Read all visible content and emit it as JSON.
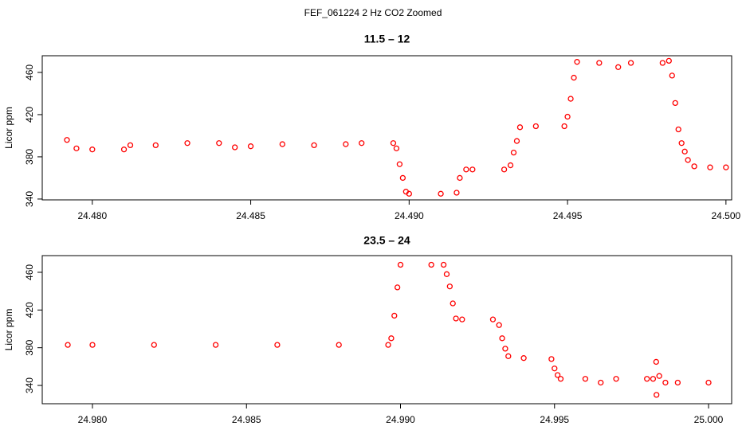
{
  "title": "FEF_061224  2 Hz CO2 Zoomed",
  "chart_data": [
    {
      "type": "scatter",
      "title": "11.5 – 12",
      "y_label": "Licor ppm",
      "color": "#ff0000",
      "xlim": [
        24.47842,
        24.50018
      ],
      "ylim": [
        339.2,
        475.8
      ],
      "xticks": [
        {
          "value": 24.48,
          "label": "24.480"
        },
        {
          "value": 24.485,
          "label": "24.485"
        },
        {
          "value": 24.49,
          "label": "24.490"
        },
        {
          "value": 24.495,
          "label": "24.495"
        },
        {
          "value": 24.5,
          "label": "24.500"
        }
      ],
      "yticks": [
        340,
        380,
        420,
        460
      ],
      "series": [
        {
          "name": "Licor ppm",
          "color": "#ff0000",
          "x": [
            24.4792,
            24.4795,
            24.48,
            24.481,
            24.4812,
            24.482,
            24.483,
            24.484,
            24.4845,
            24.485,
            24.486,
            24.487,
            24.488,
            24.4885,
            24.4895,
            24.4896,
            24.4897,
            24.4898,
            24.4899,
            24.49,
            24.491,
            24.4915,
            24.4916,
            24.4918,
            24.492,
            24.493,
            24.4932,
            24.4933,
            24.4934,
            24.4935,
            24.494,
            24.4949,
            24.495,
            24.4951,
            24.4952,
            24.4953,
            24.496,
            24.4966,
            24.497,
            24.498,
            24.4982,
            24.4983,
            24.4984,
            24.4985,
            24.4986,
            24.4987,
            24.4988,
            24.499,
            24.4995,
            24.5
          ],
          "values": [
            396,
            388,
            387,
            387,
            391,
            391,
            393,
            393,
            389,
            390,
            392,
            391,
            392,
            393,
            393,
            388,
            373,
            360,
            347,
            345,
            345,
            346,
            360,
            368,
            368,
            368,
            372,
            384,
            395,
            408,
            409,
            409,
            418,
            435,
            455,
            470,
            469,
            465,
            469,
            469,
            471,
            457,
            431,
            406,
            393,
            385,
            377,
            371,
            370,
            370
          ]
        }
      ]
    },
    {
      "type": "scatter",
      "title": "23.5 – 24",
      "y_label": "Licor ppm",
      "color": "#ff0000",
      "xlim": [
        24.97837,
        25.00075
      ],
      "ylim": [
        320.6,
        477.7
      ],
      "xticks": [
        {
          "value": 24.98,
          "label": "24.980"
        },
        {
          "value": 24.985,
          "label": "24.985"
        },
        {
          "value": 24.99,
          "label": "24.990"
        },
        {
          "value": 24.995,
          "label": "24.995"
        },
        {
          "value": 25.0,
          "label": "25.000"
        }
      ],
      "yticks": [
        340,
        380,
        420,
        460
      ],
      "series": [
        {
          "name": "Licor ppm",
          "color": "#ff0000",
          "x": [
            24.9792,
            24.98,
            24.982,
            24.984,
            24.986,
            24.988,
            24.9896,
            24.9897,
            24.9898,
            24.9899,
            24.99,
            24.991,
            24.9914,
            24.9915,
            24.9916,
            24.9917,
            24.9918,
            24.992,
            24.993,
            24.9932,
            24.9933,
            24.9934,
            24.9935,
            24.994,
            24.9949,
            24.995,
            24.9951,
            24.9952,
            24.996,
            24.9965,
            24.997,
            24.998,
            24.9982,
            24.9983,
            24.99831,
            24.9984,
            24.9986,
            24.999,
            25.0
          ],
          "values": [
            383,
            383,
            383,
            383,
            383,
            383,
            383,
            390,
            414,
            444,
            468,
            468,
            468,
            458,
            445,
            427,
            411,
            410,
            410,
            404,
            390,
            379,
            371,
            369,
            368,
            358,
            351,
            347,
            347,
            343,
            347,
            347,
            347,
            365,
            330,
            350,
            343,
            343,
            343
          ]
        }
      ]
    }
  ]
}
